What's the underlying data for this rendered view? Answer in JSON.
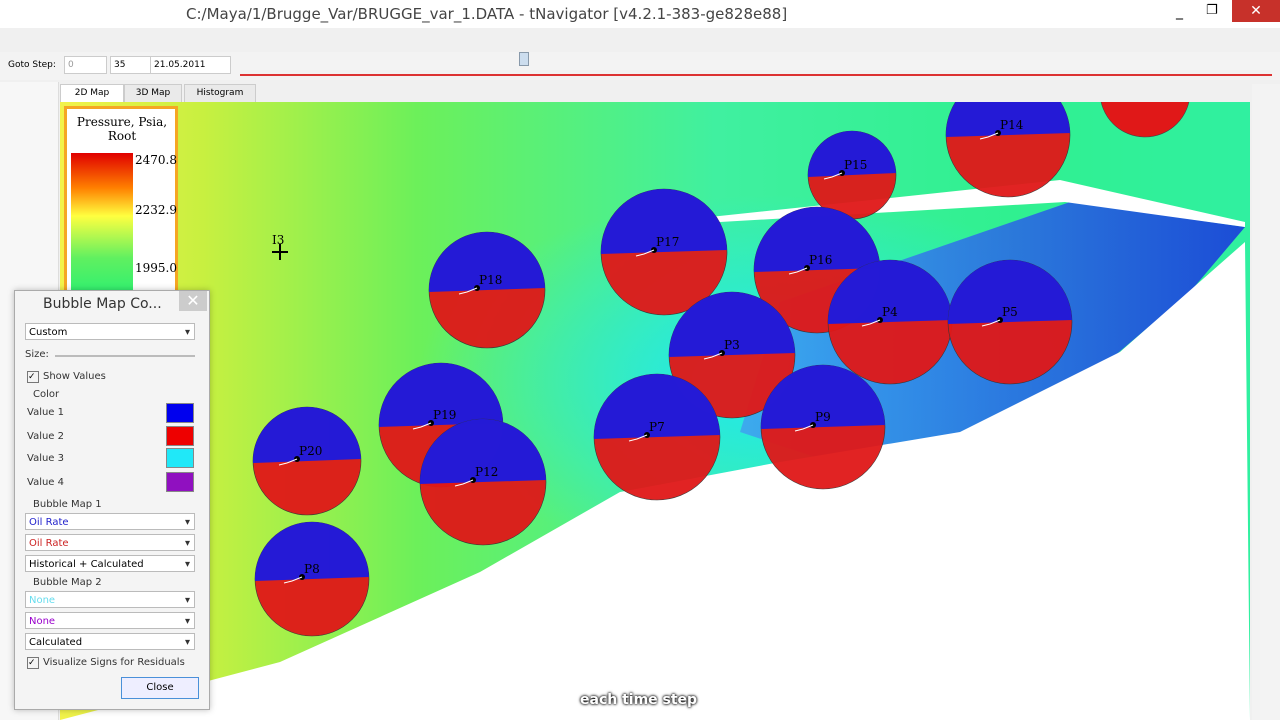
{
  "window": {
    "title": "C:/Maya/1/Brugge_Var/BRUGGE_var_1.DATA - tNavigator [v4.2.1-383-ge828e88]"
  },
  "toolbar": {
    "goto_label": "Goto Step:",
    "step_from": "0",
    "step": "35",
    "date": "21.05.2011"
  },
  "tabs": [
    "2D Map",
    "3D Map",
    "Histogram"
  ],
  "legend": {
    "title": "Pressure, Psia, Root",
    "labels": [
      "2470.8",
      "2232.9",
      "1995.0"
    ]
  },
  "wells": [
    "P14",
    "P15",
    "P17",
    "P18",
    "P16",
    "P4",
    "P5",
    "P3",
    "P19",
    "P12",
    "P20",
    "P7",
    "P9",
    "P8",
    "I3"
  ],
  "dialog": {
    "title": "Bubble Map Co...",
    "preset": "Custom",
    "size_label": "Size:",
    "show_values": "Show Values",
    "color_group": "Color",
    "color_items": [
      "Value 1",
      "Value 2",
      "Value 3",
      "Value 4"
    ],
    "map1_group": "Bubble Map 1",
    "map1_fields": [
      "Oil Rate",
      "Oil Rate",
      "Historical + Calculated"
    ],
    "map2_group": "Bubble Map 2",
    "map2_fields": [
      "None",
      "None",
      "Calculated"
    ],
    "residuals": "Visualize Signs for Residuals",
    "close": "Close"
  },
  "subtitle": "each time step"
}
